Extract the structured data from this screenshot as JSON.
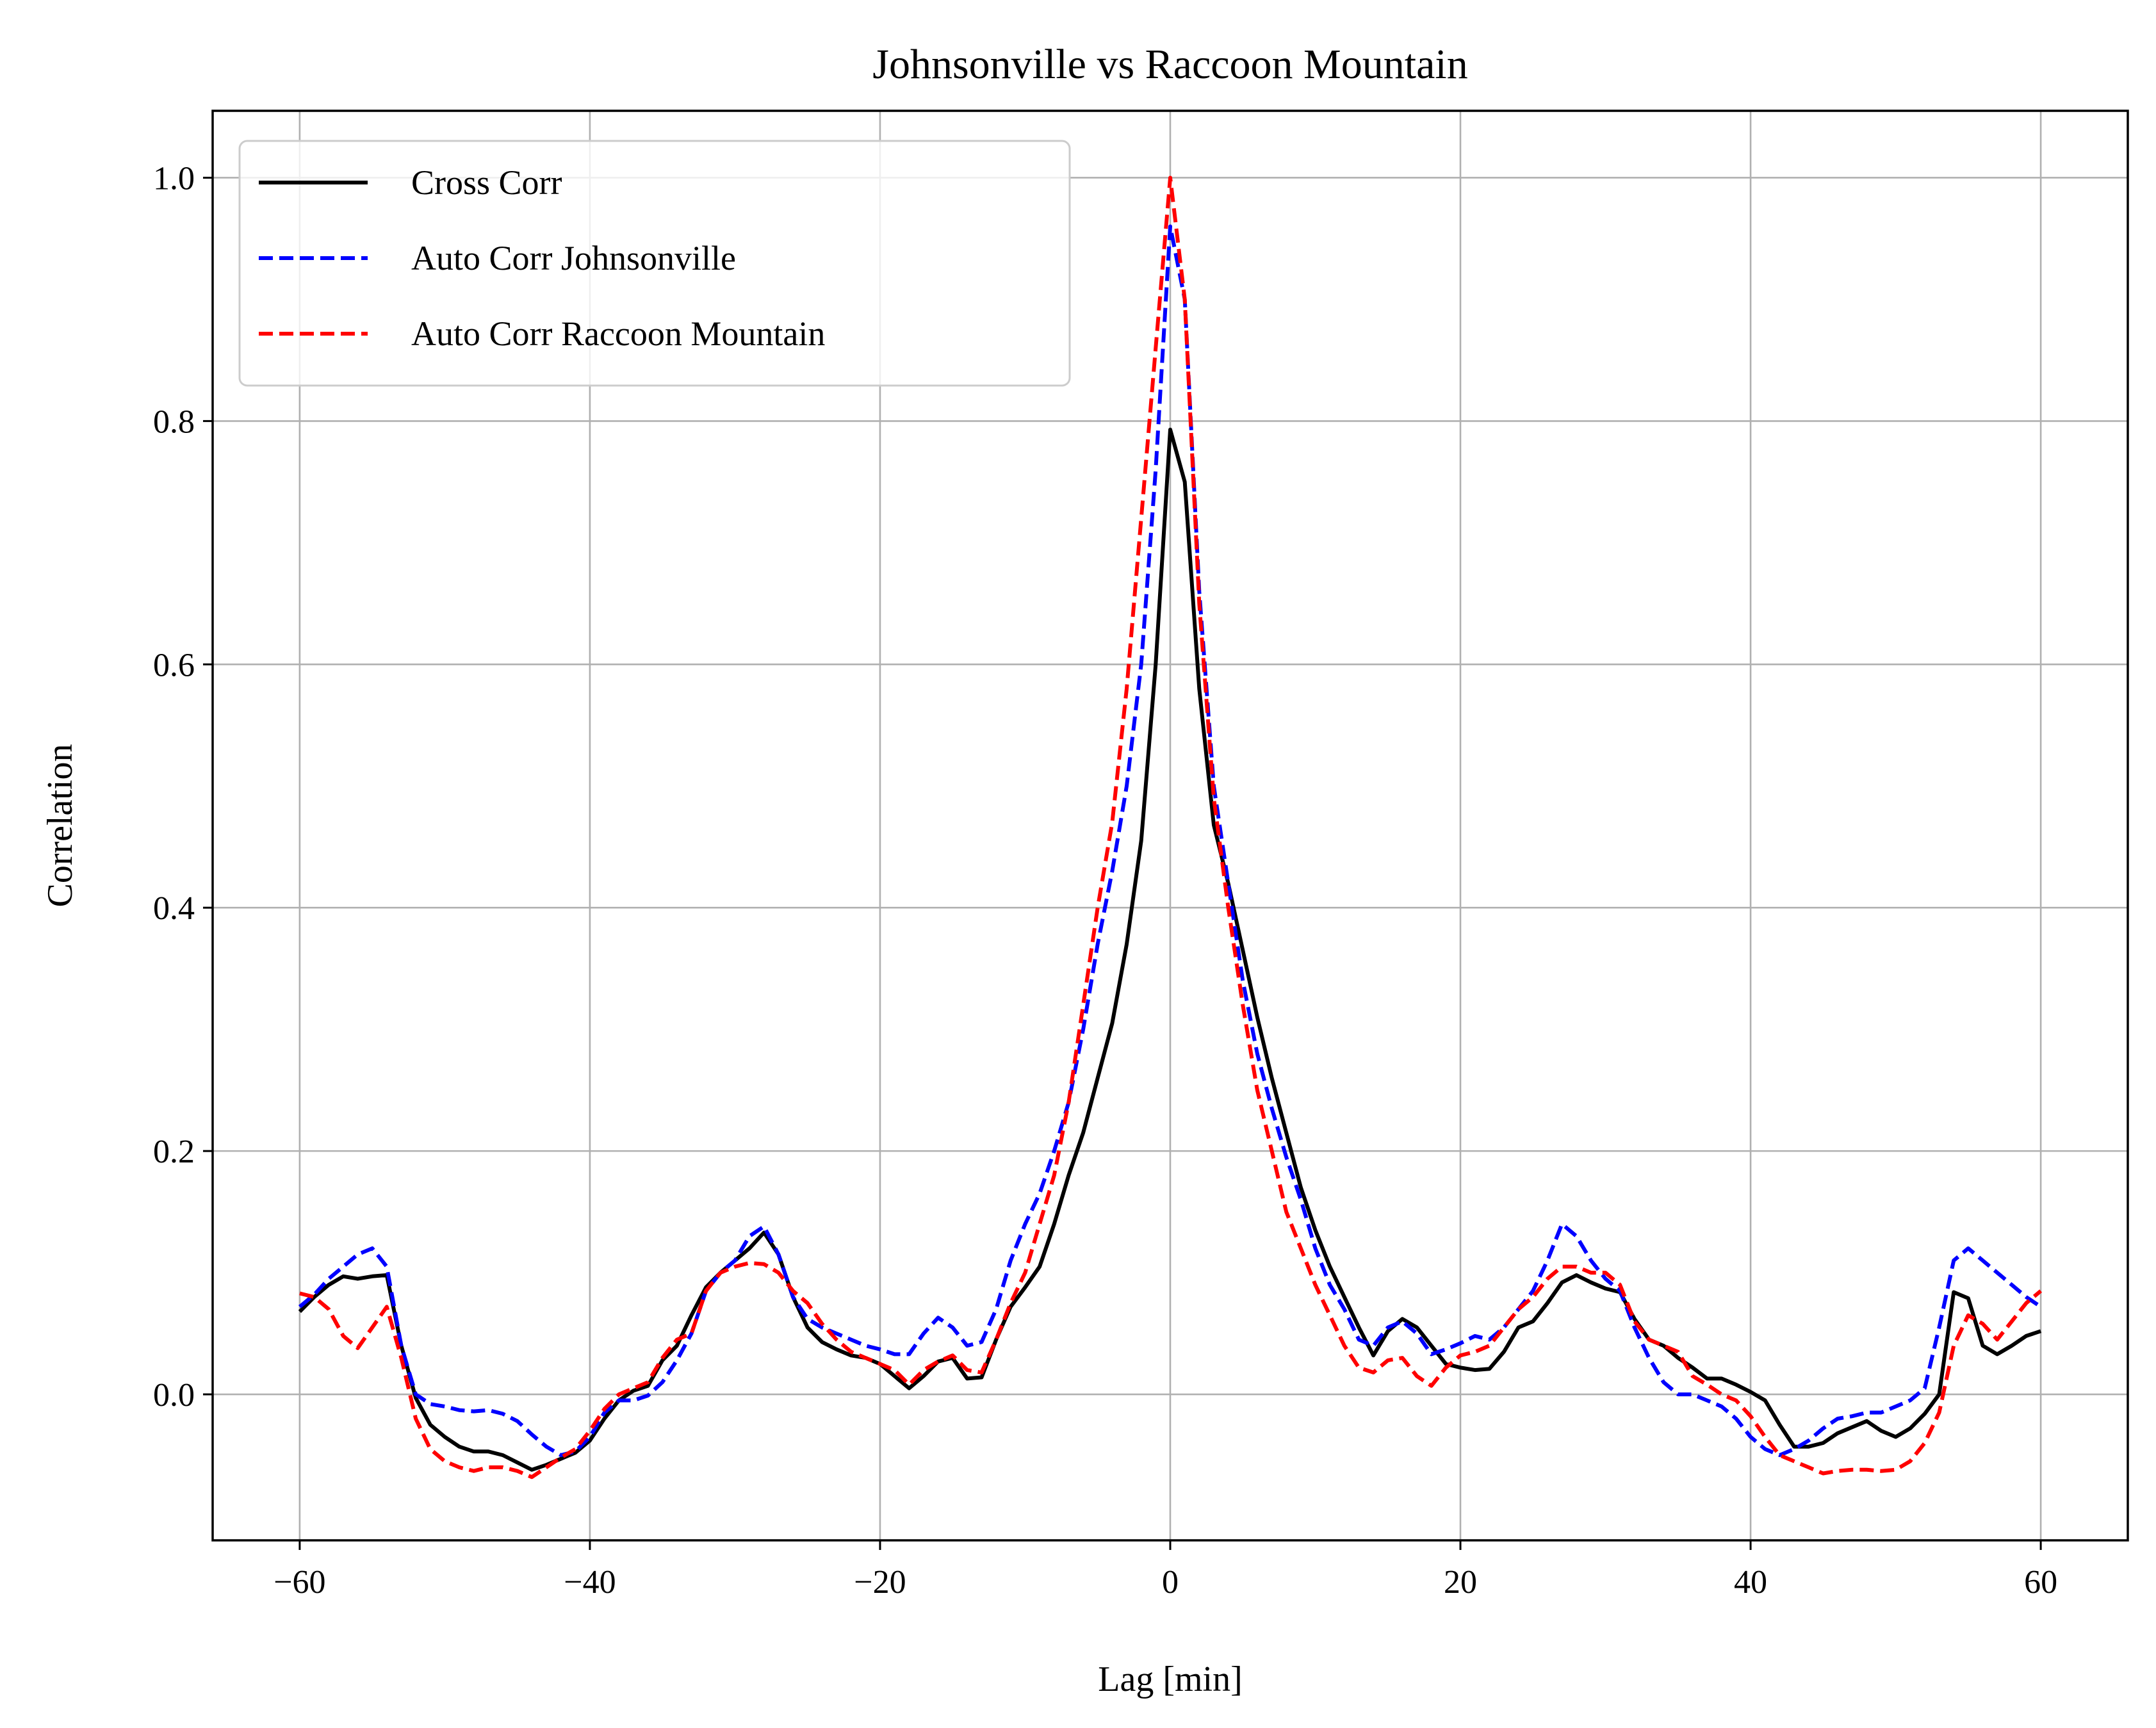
{
  "chart_data": {
    "type": "line",
    "title": "Johnsonville vs Raccoon Mountain",
    "xlabel": "Lag [min]",
    "ylabel": "Correlation",
    "xlim": [
      -66,
      66
    ],
    "ylim": [
      -0.12,
      1.055
    ],
    "xticks": [
      -60,
      -40,
      -20,
      0,
      20,
      40,
      60
    ],
    "yticks": [
      0.0,
      0.2,
      0.4,
      0.6,
      0.8,
      1.0
    ],
    "xtick_labels": [
      "−60",
      "−40",
      "−20",
      "0",
      "20",
      "40",
      "60"
    ],
    "ytick_labels": [
      "0.0",
      "0.2",
      "0.4",
      "0.6",
      "0.8",
      "1.0"
    ],
    "grid": true,
    "legend_position": "upper-left",
    "series": [
      {
        "name": "Cross Corr",
        "color": "#000000",
        "style": "solid",
        "x": [
          -60,
          -59,
          -58,
          -57,
          -56,
          -55,
          -54,
          -53,
          -52,
          -51,
          -50,
          -49,
          -48,
          -47,
          -46,
          -45,
          -44,
          -43,
          -42,
          -41,
          -40,
          -39,
          -38,
          -37,
          -36,
          -35,
          -34,
          -33,
          -32,
          -31,
          -30,
          -29,
          -28,
          -27,
          -26,
          -25,
          -24,
          -23,
          -22,
          -21,
          -20,
          -19,
          -18,
          -17,
          -16,
          -15,
          -14,
          -13,
          -12,
          -11,
          -10,
          -9,
          -8,
          -7,
          -6,
          -5,
          -4,
          -3,
          -2,
          -1,
          0,
          1,
          2,
          3,
          4,
          5,
          6,
          7,
          8,
          9,
          10,
          11,
          12,
          13,
          14,
          15,
          16,
          17,
          18,
          19,
          20,
          21,
          22,
          23,
          24,
          25,
          26,
          27,
          28,
          29,
          30,
          31,
          32,
          33,
          34,
          35,
          36,
          37,
          38,
          39,
          40,
          41,
          42,
          43,
          44,
          45,
          46,
          47,
          48,
          49,
          50,
          51,
          52,
          53,
          54,
          55,
          56,
          57,
          58,
          59,
          60
        ],
        "y": [
          0.068,
          0.08,
          0.09,
          0.097,
          0.095,
          0.097,
          0.098,
          0.04,
          -0.003,
          -0.025,
          -0.035,
          -0.043,
          -0.047,
          -0.047,
          -0.05,
          -0.056,
          -0.062,
          -0.058,
          -0.053,
          -0.048,
          -0.038,
          -0.02,
          -0.005,
          0.003,
          0.007,
          0.028,
          0.04,
          0.065,
          0.088,
          0.1,
          0.11,
          0.12,
          0.133,
          0.115,
          0.08,
          0.055,
          0.043,
          0.037,
          0.032,
          0.03,
          0.025,
          0.015,
          0.005,
          0.015,
          0.027,
          0.03,
          0.013,
          0.014,
          0.045,
          0.072,
          0.088,
          0.105,
          0.14,
          0.18,
          0.215,
          0.26,
          0.305,
          0.37,
          0.455,
          0.6,
          0.793,
          0.75,
          0.58,
          0.468,
          0.42,
          0.365,
          0.31,
          0.26,
          0.215,
          0.17,
          0.135,
          0.105,
          0.08,
          0.055,
          0.032,
          0.052,
          0.062,
          0.055,
          0.04,
          0.025,
          0.022,
          0.02,
          0.021,
          0.035,
          0.055,
          0.06,
          0.075,
          0.092,
          0.098,
          0.092,
          0.087,
          0.084,
          0.062,
          0.045,
          0.04,
          0.03,
          0.022,
          0.013,
          0.013,
          0.008,
          0.002,
          -0.005,
          -0.025,
          -0.043,
          -0.043,
          -0.04,
          -0.032,
          -0.027,
          -0.022,
          -0.03,
          -0.035,
          -0.028,
          -0.016,
          0.0,
          0.084,
          0.079,
          0.04,
          0.033,
          0.04,
          0.048,
          0.052
        ]
      },
      {
        "name": "Auto Corr Johnsonville",
        "color": "#0000ff",
        "style": "dashed",
        "x": [
          -60,
          -59,
          -58,
          -57,
          -56,
          -55,
          -54,
          -53,
          -52,
          -51,
          -50,
          -49,
          -48,
          -47,
          -46,
          -45,
          -44,
          -43,
          -42,
          -41,
          -40,
          -39,
          -38,
          -37,
          -36,
          -35,
          -34,
          -33,
          -32,
          -31,
          -30,
          -29,
          -28,
          -27,
          -26,
          -25,
          -24,
          -23,
          -22,
          -21,
          -20,
          -19,
          -18,
          -17,
          -16,
          -15,
          -14,
          -13,
          -12,
          -11,
          -10,
          -9,
          -8,
          -7,
          -6,
          -5,
          -4,
          -3,
          -2,
          -1,
          0,
          1,
          2,
          3,
          4,
          5,
          6,
          7,
          8,
          9,
          10,
          11,
          12,
          13,
          14,
          15,
          16,
          17,
          18,
          19,
          20,
          21,
          22,
          23,
          24,
          25,
          26,
          27,
          28,
          29,
          30,
          31,
          32,
          33,
          34,
          35,
          36,
          37,
          38,
          39,
          40,
          41,
          42,
          43,
          44,
          45,
          46,
          47,
          48,
          49,
          50,
          51,
          52,
          53,
          54,
          55,
          56,
          57,
          58,
          59,
          60
        ],
        "y": [
          0.072,
          0.082,
          0.095,
          0.105,
          0.115,
          0.12,
          0.105,
          0.04,
          0.0,
          -0.008,
          -0.01,
          -0.013,
          -0.014,
          -0.013,
          -0.016,
          -0.022,
          -0.033,
          -0.043,
          -0.05,
          -0.047,
          -0.035,
          -0.015,
          -0.005,
          -0.005,
          -0.001,
          0.01,
          0.028,
          0.05,
          0.085,
          0.1,
          0.11,
          0.13,
          0.138,
          0.115,
          0.08,
          0.062,
          0.055,
          0.05,
          0.045,
          0.04,
          0.037,
          0.033,
          0.033,
          0.05,
          0.063,
          0.055,
          0.04,
          0.043,
          0.07,
          0.11,
          0.14,
          0.165,
          0.2,
          0.24,
          0.3,
          0.37,
          0.43,
          0.5,
          0.6,
          0.76,
          0.96,
          0.9,
          0.66,
          0.5,
          0.42,
          0.34,
          0.28,
          0.235,
          0.195,
          0.16,
          0.12,
          0.09,
          0.07,
          0.045,
          0.04,
          0.055,
          0.06,
          0.05,
          0.033,
          0.037,
          0.042,
          0.048,
          0.045,
          0.055,
          0.07,
          0.085,
          0.11,
          0.14,
          0.13,
          0.11,
          0.095,
          0.085,
          0.055,
          0.03,
          0.01,
          0.0,
          0.0,
          -0.005,
          -0.01,
          -0.02,
          -0.035,
          -0.045,
          -0.05,
          -0.045,
          -0.038,
          -0.028,
          -0.02,
          -0.018,
          -0.015,
          -0.015,
          -0.01,
          -0.005,
          0.005,
          0.055,
          0.11,
          0.12,
          0.11,
          0.1,
          0.09,
          0.08,
          0.072
        ]
      },
      {
        "name": "Auto Corr Raccoon Mountain",
        "color": "#ff0000",
        "style": "dashed",
        "x": [
          -60,
          -59,
          -58,
          -57,
          -56,
          -55,
          -54,
          -53,
          -52,
          -51,
          -50,
          -49,
          -48,
          -47,
          -46,
          -45,
          -44,
          -43,
          -42,
          -41,
          -40,
          -39,
          -38,
          -37,
          -36,
          -35,
          -34,
          -33,
          -32,
          -31,
          -30,
          -29,
          -28,
          -27,
          -26,
          -25,
          -24,
          -23,
          -22,
          -21,
          -20,
          -19,
          -18,
          -17,
          -16,
          -15,
          -14,
          -13,
          -12,
          -11,
          -10,
          -9,
          -8,
          -7,
          -6,
          -5,
          -4,
          -3,
          -2,
          -1,
          0,
          1,
          2,
          3,
          4,
          5,
          6,
          7,
          8,
          9,
          10,
          11,
          12,
          13,
          14,
          15,
          16,
          17,
          18,
          19,
          20,
          21,
          22,
          23,
          24,
          25,
          26,
          27,
          28,
          29,
          30,
          31,
          32,
          33,
          34,
          35,
          36,
          37,
          38,
          39,
          40,
          41,
          42,
          43,
          44,
          45,
          46,
          47,
          48,
          49,
          50,
          51,
          52,
          53,
          54,
          55,
          56,
          57,
          58,
          59,
          60
        ],
        "y": [
          0.083,
          0.08,
          0.07,
          0.048,
          0.038,
          0.055,
          0.072,
          0.03,
          -0.02,
          -0.045,
          -0.055,
          -0.06,
          -0.063,
          -0.06,
          -0.06,
          -0.063,
          -0.068,
          -0.06,
          -0.052,
          -0.045,
          -0.03,
          -0.012,
          0.0,
          0.005,
          0.01,
          0.03,
          0.045,
          0.05,
          0.085,
          0.1,
          0.105,
          0.108,
          0.107,
          0.1,
          0.085,
          0.075,
          0.058,
          0.045,
          0.035,
          0.03,
          0.025,
          0.02,
          0.008,
          0.02,
          0.027,
          0.032,
          0.02,
          0.018,
          0.045,
          0.075,
          0.1,
          0.14,
          0.18,
          0.24,
          0.32,
          0.4,
          0.47,
          0.58,
          0.72,
          0.86,
          1.0,
          0.9,
          0.65,
          0.49,
          0.4,
          0.32,
          0.25,
          0.2,
          0.15,
          0.12,
          0.09,
          0.065,
          0.04,
          0.022,
          0.018,
          0.028,
          0.03,
          0.015,
          0.007,
          0.022,
          0.032,
          0.035,
          0.04,
          0.055,
          0.07,
          0.08,
          0.095,
          0.105,
          0.105,
          0.1,
          0.1,
          0.09,
          0.06,
          0.045,
          0.04,
          0.035,
          0.015,
          0.008,
          0.0,
          -0.005,
          -0.018,
          -0.035,
          -0.05,
          -0.055,
          -0.06,
          -0.065,
          -0.063,
          -0.062,
          -0.062,
          -0.063,
          -0.062,
          -0.055,
          -0.04,
          -0.015,
          0.04,
          0.065,
          0.058,
          0.045,
          0.06,
          0.075,
          0.085
        ]
      }
    ]
  }
}
